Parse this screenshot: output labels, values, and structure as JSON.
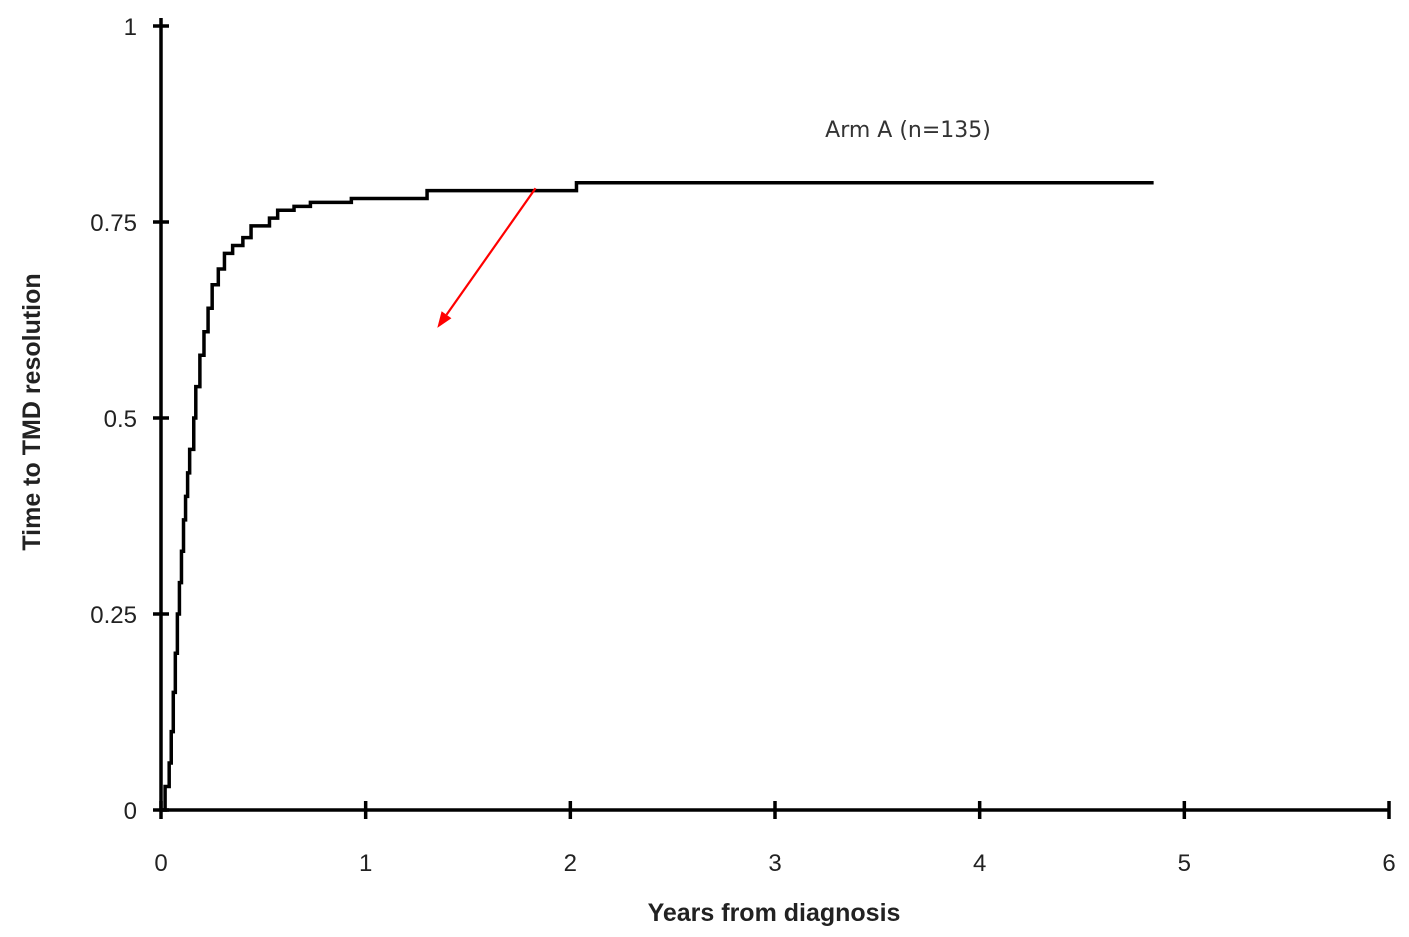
{
  "chart_data": {
    "type": "line",
    "title": "",
    "xlabel": "Years from diagnosis",
    "ylabel": "Time to TMD resolution",
    "xlim": [
      0,
      6
    ],
    "ylim": [
      0,
      1
    ],
    "x_ticks": [
      0,
      1,
      2,
      3,
      4,
      5,
      6
    ],
    "x_tick_labels": [
      "0",
      "1",
      "2",
      "3",
      "4",
      "5",
      "6"
    ],
    "y_ticks": [
      0,
      0.25,
      0.5,
      0.75,
      1
    ],
    "y_tick_labels": [
      "0",
      "0.25",
      "0.5",
      "0.75",
      "1"
    ],
    "grid": false,
    "step": true,
    "series": [
      {
        "name": "Arm A (n=135)",
        "color": "#000000",
        "points": [
          [
            0,
            0
          ],
          [
            0.02,
            0.03
          ],
          [
            0.04,
            0.06
          ],
          [
            0.05,
            0.1
          ],
          [
            0.06,
            0.15
          ],
          [
            0.07,
            0.2
          ],
          [
            0.08,
            0.25
          ],
          [
            0.09,
            0.29
          ],
          [
            0.1,
            0.33
          ],
          [
            0.11,
            0.37
          ],
          [
            0.12,
            0.4
          ],
          [
            0.13,
            0.43
          ],
          [
            0.14,
            0.46
          ],
          [
            0.16,
            0.5
          ],
          [
            0.17,
            0.54
          ],
          [
            0.19,
            0.58
          ],
          [
            0.21,
            0.61
          ],
          [
            0.23,
            0.64
          ],
          [
            0.25,
            0.67
          ],
          [
            0.28,
            0.69
          ],
          [
            0.31,
            0.71
          ],
          [
            0.35,
            0.72
          ],
          [
            0.4,
            0.73
          ],
          [
            0.44,
            0.745
          ],
          [
            0.53,
            0.755
          ],
          [
            0.57,
            0.765
          ],
          [
            0.65,
            0.77
          ],
          [
            0.73,
            0.775
          ],
          [
            0.93,
            0.78
          ],
          [
            1.3,
            0.79
          ],
          [
            2.03,
            0.8
          ],
          [
            4.85,
            0.8
          ]
        ]
      }
    ],
    "annotations": [
      {
        "type": "label",
        "text": "Arm A (n=135)"
      },
      {
        "type": "arrow",
        "color": "#ff0000",
        "from": [
          1.83,
          0.793
        ],
        "to": [
          1.35,
          0.615
        ]
      }
    ]
  }
}
